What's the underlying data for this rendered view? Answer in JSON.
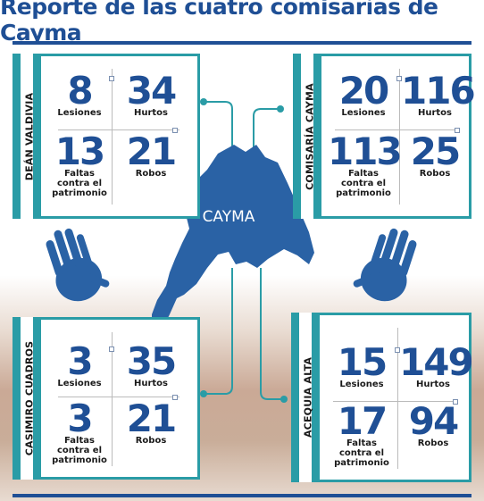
{
  "title": "Reporte de las cuatro comisarías de Cayma",
  "map_label": "CAYMA",
  "colors": {
    "primary": "#1f4f95",
    "accent": "#2a9ca6",
    "map": "#2a62a5"
  },
  "icons": [
    "left-handprint-icon",
    "right-handprint-icon"
  ],
  "chart_data": {
    "type": "table",
    "title": "Reporte de las cuatro comisarías de Cayma",
    "categories": [
      "Lesiones",
      "Hurtos",
      "Faltas contra el patrimonio",
      "Robos"
    ],
    "stations": [
      {
        "name": "DEÁN VALDIVIA",
        "lesiones": 8,
        "hurtos": 34,
        "faltas": 13,
        "robos": 21
      },
      {
        "name": "COMISARÍA CAYMA",
        "lesiones": 20,
        "hurtos": 116,
        "faltas": 113,
        "robos": 25
      },
      {
        "name": "CASIMIRO CUADROS",
        "lesiones": 3,
        "hurtos": 35,
        "faltas": 3,
        "robos": 21
      },
      {
        "name": "ACEQUIA ALTA",
        "lesiones": 15,
        "hurtos": 149,
        "faltas": 17,
        "robos": 94
      }
    ]
  },
  "labels": {
    "lesiones": "Lesiones",
    "hurtos": "Hurtos",
    "faltas_1": "Faltas",
    "faltas_2": "contra el",
    "faltas_3": "patrimonio",
    "robos": "Robos"
  }
}
